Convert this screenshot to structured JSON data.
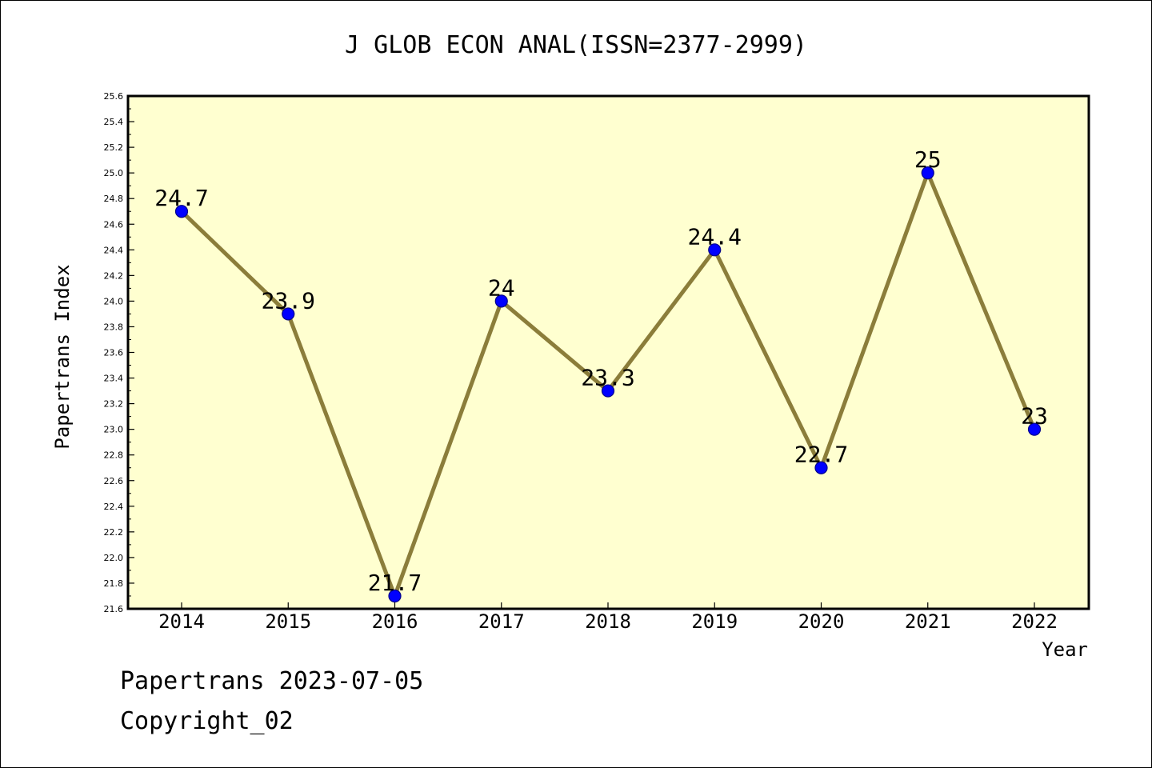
{
  "chart_data": {
    "type": "line",
    "title": "J GLOB ECON ANAL(ISSN=2377-2999)",
    "xlabel": "Year",
    "ylabel": "Papertrans Index",
    "categories": [
      "2014",
      "2015",
      "2016",
      "2017",
      "2018",
      "2019",
      "2020",
      "2021",
      "2022"
    ],
    "values": [
      24.7,
      23.9,
      21.7,
      24.0,
      23.3,
      24.4,
      22.7,
      25.0,
      23.0
    ],
    "data_labels": [
      "24.7",
      "23.9",
      "21.7",
      "24",
      "23.3",
      "24.4",
      "22.7",
      "25",
      "23"
    ],
    "ylim": [
      21.6,
      25.6
    ],
    "y_ticks": [
      "21.6",
      "21.8",
      "22.0",
      "22.2",
      "22.4",
      "22.6",
      "22.8",
      "23.0",
      "23.2",
      "23.4",
      "23.6",
      "23.8",
      "24.0",
      "24.2",
      "24.4",
      "24.6",
      "24.8",
      "25.0",
      "25.2",
      "25.4",
      "25.6"
    ],
    "grid": false,
    "legend": "none",
    "colors": {
      "plot_background": "#ffffd0",
      "line": "#8b7d3a",
      "marker": "#0000ff"
    }
  },
  "footer": {
    "line1": "Papertrans 2023-07-05",
    "line2": "Copyright_02"
  }
}
